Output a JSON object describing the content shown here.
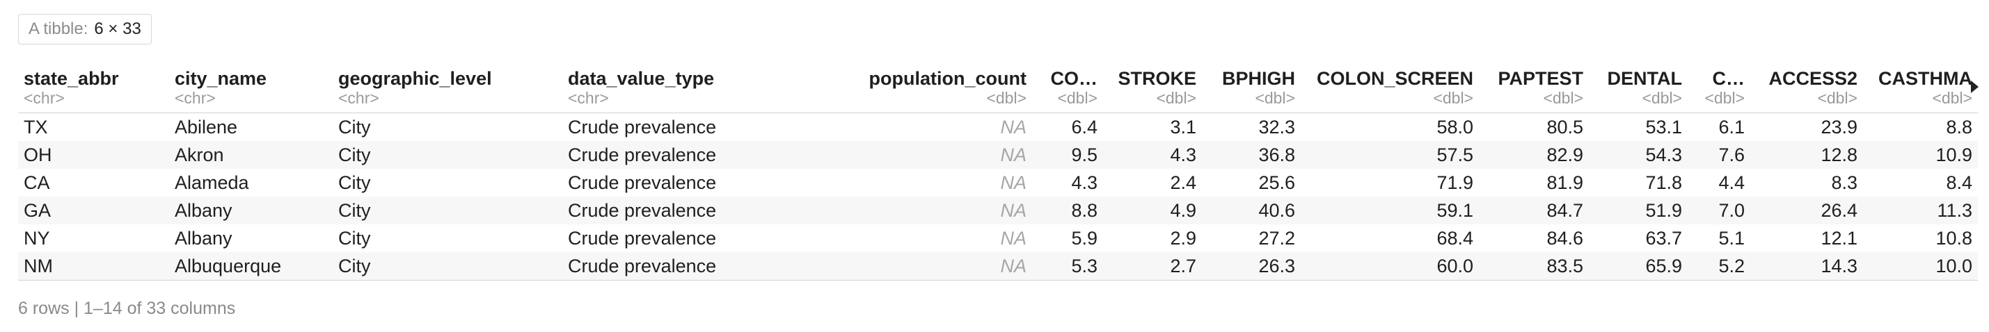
{
  "tibble": {
    "label": "A tibble:",
    "dims": "6 × 33"
  },
  "columns": [
    {
      "name": "state_abbr",
      "type": "<chr>"
    },
    {
      "name": "city_name",
      "type": "<chr>"
    },
    {
      "name": "geographic_level",
      "type": "<chr>"
    },
    {
      "name": "data_value_type",
      "type": "<chr>"
    },
    {
      "name": "population_count",
      "type": "<dbl>"
    },
    {
      "name": "CO…",
      "type": "<dbl>"
    },
    {
      "name": "STROKE",
      "type": "<dbl>"
    },
    {
      "name": "BPHIGH",
      "type": "<dbl>"
    },
    {
      "name": "COLON_SCREEN",
      "type": "<dbl>"
    },
    {
      "name": "PAPTEST",
      "type": "<dbl>"
    },
    {
      "name": "DENTAL",
      "type": "<dbl>"
    },
    {
      "name": "C…",
      "type": "<dbl>"
    },
    {
      "name": "ACCESS2",
      "type": "<dbl>"
    },
    {
      "name": "CASTHMA",
      "type": "<dbl>"
    }
  ],
  "rows": [
    [
      "TX",
      "Abilene",
      "City",
      "Crude prevalence",
      "NA",
      "6.4",
      "3.1",
      "32.3",
      "58.0",
      "80.5",
      "53.1",
      "6.1",
      "23.9",
      "8.8"
    ],
    [
      "OH",
      "Akron",
      "City",
      "Crude prevalence",
      "NA",
      "9.5",
      "4.3",
      "36.8",
      "57.5",
      "82.9",
      "54.3",
      "7.6",
      "12.8",
      "10.9"
    ],
    [
      "CA",
      "Alameda",
      "City",
      "Crude prevalence",
      "NA",
      "4.3",
      "2.4",
      "25.6",
      "71.9",
      "81.9",
      "71.8",
      "4.4",
      "8.3",
      "8.4"
    ],
    [
      "GA",
      "Albany",
      "City",
      "Crude prevalence",
      "NA",
      "8.8",
      "4.9",
      "40.6",
      "59.1",
      "84.7",
      "51.9",
      "7.0",
      "26.4",
      "11.3"
    ],
    [
      "NY",
      "Albany",
      "City",
      "Crude prevalence",
      "NA",
      "5.9",
      "2.9",
      "27.2",
      "68.4",
      "84.6",
      "63.7",
      "5.1",
      "12.1",
      "10.8"
    ],
    [
      "NM",
      "Albuquerque",
      "City",
      "Crude prevalence",
      "NA",
      "5.3",
      "2.7",
      "26.3",
      "60.0",
      "83.5",
      "65.9",
      "5.2",
      "14.3",
      "10.0"
    ]
  ],
  "footer": "6 rows | 1–14 of 33 columns",
  "icons": {
    "more_columns": "triangle-right-icon"
  }
}
